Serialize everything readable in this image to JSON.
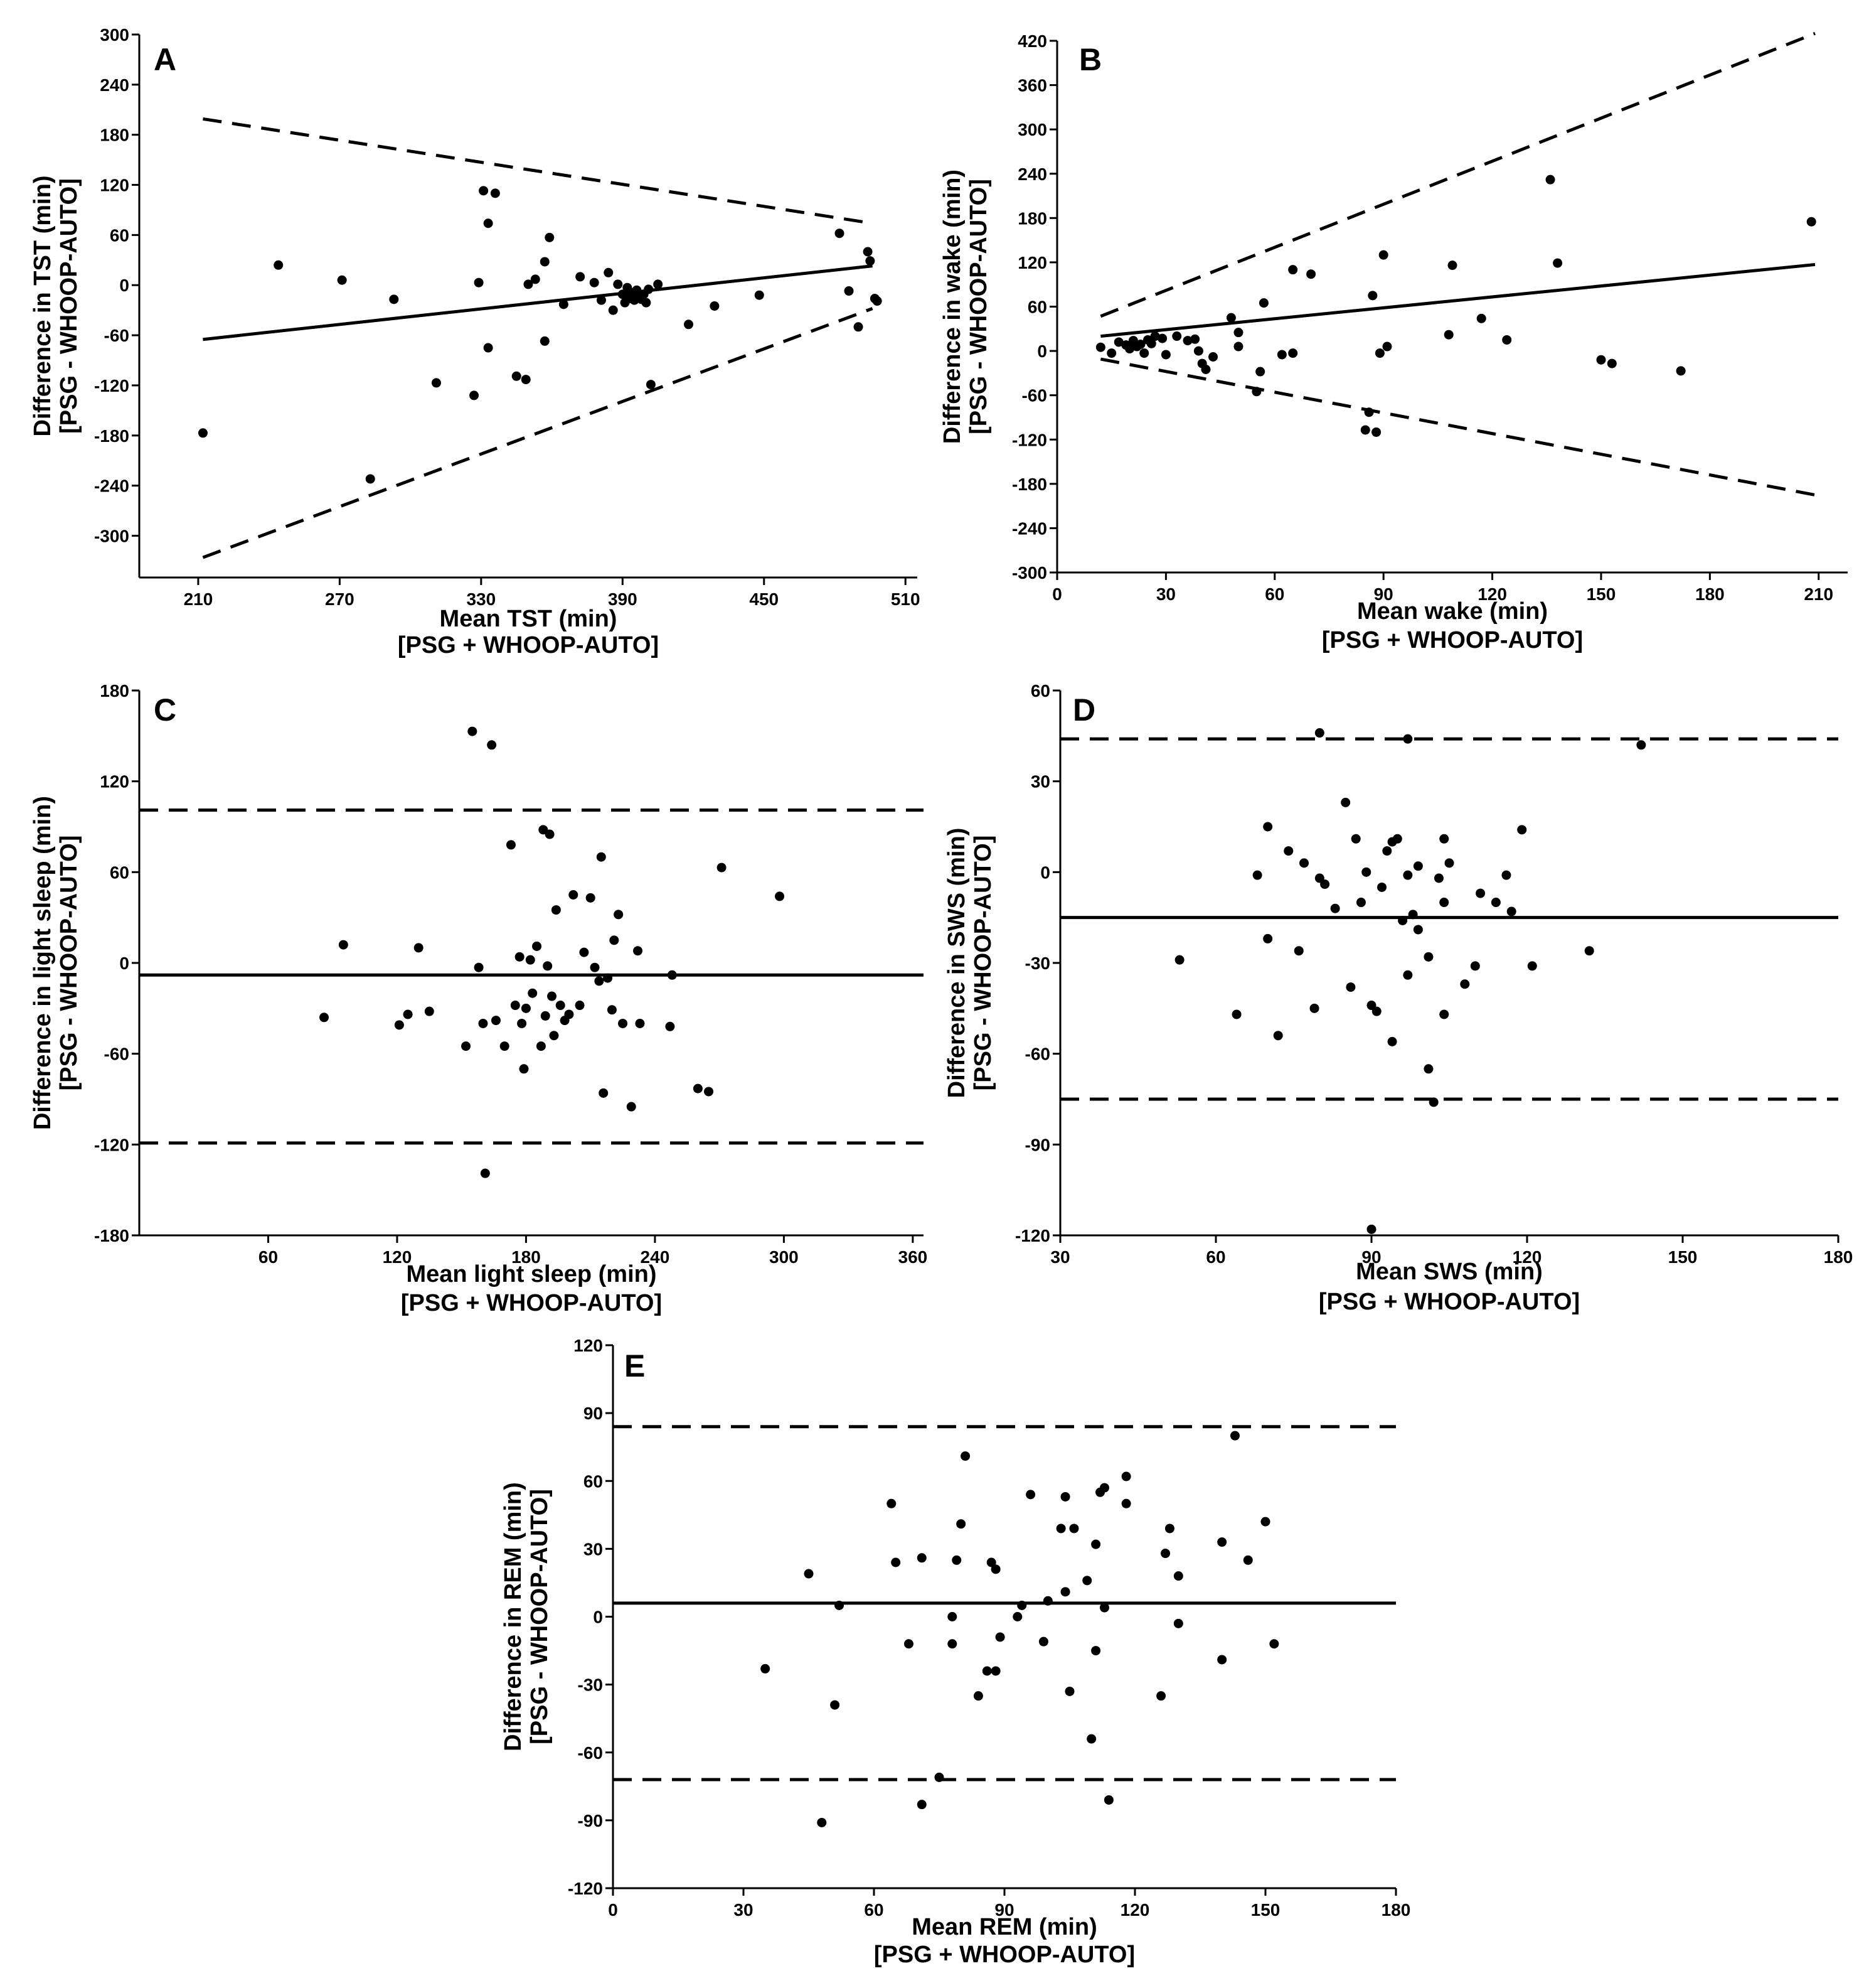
{
  "figure": {
    "x_sub": "[PSG + WHOOP-AUTO]",
    "y_sub": "[PSG - WHOOP-AUTO]"
  },
  "chart_data": [
    {
      "id": "A",
      "type": "scatter",
      "panel_label": "A",
      "xlabel": "Mean TST (min)",
      "ylabel": "Difference in TST (min)",
      "xlim": [
        185,
        515
      ],
      "ylim": [
        -350,
        300
      ],
      "xticks": [
        210,
        270,
        330,
        390,
        450,
        510
      ],
      "yticks": [
        -300,
        -240,
        -180,
        -120,
        -60,
        0,
        60,
        120,
        180,
        240,
        300
      ],
      "bias_line": [
        [
          212,
          -65
        ],
        [
          496,
          23
        ]
      ],
      "loa_upper": [
        [
          212,
          199
        ],
        [
          496,
          74
        ]
      ],
      "loa_lower": [
        [
          212,
          -326
        ],
        [
          496,
          -28
        ]
      ],
      "points": [
        [
          212,
          -177
        ],
        [
          244,
          24
        ],
        [
          271,
          6
        ],
        [
          293,
          -17
        ],
        [
          283,
          -232
        ],
        [
          311,
          -117
        ],
        [
          327,
          -132
        ],
        [
          329,
          3
        ],
        [
          331,
          113
        ],
        [
          333,
          74
        ],
        [
          333,
          -75
        ],
        [
          336,
          110
        ],
        [
          345,
          -109
        ],
        [
          349,
          -113
        ],
        [
          350,
          1
        ],
        [
          353,
          7
        ],
        [
          357,
          28
        ],
        [
          357,
          -67
        ],
        [
          359,
          57
        ],
        [
          365,
          -23
        ],
        [
          372,
          10
        ],
        [
          378,
          3
        ],
        [
          381,
          -18
        ],
        [
          384,
          15
        ],
        [
          386,
          -30
        ],
        [
          388,
          1
        ],
        [
          390,
          -11
        ],
        [
          391,
          -21
        ],
        [
          392,
          -3
        ],
        [
          393,
          -16
        ],
        [
          394,
          -9
        ],
        [
          395,
          -18
        ],
        [
          396,
          -6
        ],
        [
          397,
          -13
        ],
        [
          398,
          -17
        ],
        [
          399,
          -11
        ],
        [
          400,
          -21
        ],
        [
          401,
          -5
        ],
        [
          402,
          -119
        ],
        [
          405,
          1
        ],
        [
          418,
          -47
        ],
        [
          429,
          -25
        ],
        [
          448,
          -12
        ],
        [
          482,
          62
        ],
        [
          486,
          -7
        ],
        [
          490,
          -50
        ],
        [
          494,
          40
        ],
        [
          495,
          29
        ],
        [
          497,
          -16
        ],
        [
          498,
          -19
        ]
      ]
    },
    {
      "id": "B",
      "type": "scatter",
      "panel_label": "B",
      "xlabel": "Mean wake (min)",
      "ylabel": "Difference in wake (min)",
      "xlim": [
        0,
        218
      ],
      "ylim": [
        -300,
        420
      ],
      "xticks": [
        0,
        30,
        60,
        90,
        120,
        150,
        180,
        210
      ],
      "yticks": [
        -300,
        -240,
        -180,
        -120,
        -60,
        0,
        60,
        120,
        180,
        240,
        300,
        360,
        420
      ],
      "bias_line": [
        [
          12,
          20
        ],
        [
          209,
          117
        ]
      ],
      "loa_upper": [
        [
          12,
          47
        ],
        [
          209,
          430
        ]
      ],
      "loa_lower": [
        [
          12,
          -11
        ],
        [
          209,
          -195
        ]
      ],
      "points": [
        [
          12,
          5
        ],
        [
          15,
          -3
        ],
        [
          17,
          12
        ],
        [
          19,
          8
        ],
        [
          20,
          3
        ],
        [
          21,
          14
        ],
        [
          22,
          6
        ],
        [
          23,
          9
        ],
        [
          24,
          -3
        ],
        [
          25,
          15
        ],
        [
          26,
          10
        ],
        [
          27,
          20
        ],
        [
          29,
          17
        ],
        [
          30,
          -5
        ],
        [
          33,
          20
        ],
        [
          36,
          14
        ],
        [
          38,
          16
        ],
        [
          39,
          0
        ],
        [
          40,
          -17
        ],
        [
          41,
          -25
        ],
        [
          43,
          -8
        ],
        [
          48,
          45
        ],
        [
          50,
          25
        ],
        [
          50,
          6
        ],
        [
          55,
          -55
        ],
        [
          56,
          -28
        ],
        [
          57,
          65
        ],
        [
          62,
          -5
        ],
        [
          65,
          110
        ],
        [
          65,
          -3
        ],
        [
          70,
          104
        ],
        [
          85,
          -107
        ],
        [
          86,
          -83
        ],
        [
          87,
          75
        ],
        [
          88,
          -110
        ],
        [
          89,
          -3
        ],
        [
          90,
          130
        ],
        [
          91,
          6
        ],
        [
          108,
          22
        ],
        [
          109,
          116
        ],
        [
          117,
          44
        ],
        [
          124,
          15
        ],
        [
          136,
          232
        ],
        [
          138,
          119
        ],
        [
          150,
          -12
        ],
        [
          153,
          -17
        ],
        [
          172,
          -27
        ],
        [
          208,
          175
        ]
      ]
    },
    {
      "id": "C",
      "type": "scatter",
      "panel_label": "C",
      "xlabel": "Mean light sleep (min)",
      "ylabel": "Difference in light sleep (min)",
      "xlim": [
        0,
        365
      ],
      "ylim": [
        -180,
        180
      ],
      "xticks": [
        60,
        120,
        180,
        240,
        300,
        360
      ],
      "yticks": [
        -180,
        -120,
        -60,
        0,
        60,
        120,
        180
      ],
      "bias_line": [
        [
          0,
          -8
        ],
        [
          365,
          -8
        ]
      ],
      "loa_upper": [
        [
          0,
          101
        ],
        [
          365,
          101
        ]
      ],
      "loa_lower": [
        [
          0,
          -119
        ],
        [
          365,
          -119
        ]
      ],
      "points": [
        [
          86,
          -36
        ],
        [
          95,
          12
        ],
        [
          121,
          -41
        ],
        [
          125,
          -34
        ],
        [
          130,
          10
        ],
        [
          135,
          -32
        ],
        [
          152,
          -55
        ],
        [
          155,
          153
        ],
        [
          158,
          -3
        ],
        [
          160,
          -40
        ],
        [
          161,
          -139
        ],
        [
          164,
          144
        ],
        [
          166,
          -38
        ],
        [
          170,
          -55
        ],
        [
          173,
          78
        ],
        [
          175,
          -28
        ],
        [
          177,
          4
        ],
        [
          178,
          -40
        ],
        [
          179,
          -70
        ],
        [
          180,
          -30
        ],
        [
          182,
          2
        ],
        [
          183,
          -20
        ],
        [
          185,
          11
        ],
        [
          187,
          -55
        ],
        [
          188,
          88
        ],
        [
          189,
          -35
        ],
        [
          190,
          -2
        ],
        [
          191,
          85
        ],
        [
          192,
          -22
        ],
        [
          193,
          -48
        ],
        [
          194,
          35
        ],
        [
          196,
          -28
        ],
        [
          198,
          -38
        ],
        [
          200,
          -34
        ],
        [
          202,
          45
        ],
        [
          205,
          -28
        ],
        [
          207,
          7
        ],
        [
          210,
          43
        ],
        [
          212,
          -3
        ],
        [
          214,
          -12
        ],
        [
          215,
          70
        ],
        [
          216,
          -86
        ],
        [
          218,
          -10
        ],
        [
          220,
          -31
        ],
        [
          221,
          15
        ],
        [
          223,
          32
        ],
        [
          225,
          -40
        ],
        [
          229,
          -95
        ],
        [
          232,
          8
        ],
        [
          233,
          -40
        ],
        [
          247,
          -42
        ],
        [
          248,
          -8
        ],
        [
          260,
          -83
        ],
        [
          265,
          -85
        ],
        [
          271,
          63
        ],
        [
          298,
          44
        ]
      ]
    },
    {
      "id": "D",
      "type": "scatter",
      "panel_label": "D",
      "xlabel": "Mean SWS (min)",
      "ylabel": "Difference in SWS (min)",
      "xlim": [
        30,
        180
      ],
      "ylim": [
        -120,
        60
      ],
      "xticks": [
        30,
        60,
        90,
        120,
        150,
        180
      ],
      "yticks": [
        -120,
        -90,
        -60,
        -30,
        0,
        30,
        60
      ],
      "bias_line": [
        [
          30,
          -15
        ],
        [
          180,
          -15
        ]
      ],
      "loa_upper": [
        [
          30,
          44
        ],
        [
          180,
          44
        ]
      ],
      "loa_lower": [
        [
          30,
          -75
        ],
        [
          180,
          -75
        ]
      ],
      "points": [
        [
          53,
          -29
        ],
        [
          64,
          -47
        ],
        [
          68,
          -1
        ],
        [
          70,
          -22
        ],
        [
          70,
          15
        ],
        [
          72,
          -54
        ],
        [
          74,
          7
        ],
        [
          76,
          -26
        ],
        [
          77,
          3
        ],
        [
          79,
          -45
        ],
        [
          80,
          -2
        ],
        [
          80,
          46
        ],
        [
          81,
          -4
        ],
        [
          83,
          -12
        ],
        [
          85,
          23
        ],
        [
          86,
          -38
        ],
        [
          87,
          11
        ],
        [
          88,
          -10
        ],
        [
          89,
          0
        ],
        [
          90,
          -44
        ],
        [
          90,
          -118
        ],
        [
          91,
          -46
        ],
        [
          92,
          -5
        ],
        [
          93,
          7
        ],
        [
          94,
          10
        ],
        [
          94,
          -56
        ],
        [
          95,
          11
        ],
        [
          96,
          -16
        ],
        [
          97,
          -34
        ],
        [
          97,
          -1
        ],
        [
          97,
          44
        ],
        [
          98,
          -14
        ],
        [
          99,
          -19
        ],
        [
          99,
          2
        ],
        [
          101,
          -28
        ],
        [
          101,
          -65
        ],
        [
          102,
          -76
        ],
        [
          103,
          -2
        ],
        [
          104,
          11
        ],
        [
          104,
          -47
        ],
        [
          104,
          -10
        ],
        [
          105,
          3
        ],
        [
          108,
          -37
        ],
        [
          110,
          -31
        ],
        [
          111,
          -7
        ],
        [
          114,
          -10
        ],
        [
          116,
          -1
        ],
        [
          117,
          -13
        ],
        [
          119,
          14
        ],
        [
          121,
          -31
        ],
        [
          132,
          -26
        ],
        [
          142,
          42
        ]
      ]
    },
    {
      "id": "E",
      "type": "scatter",
      "panel_label": "E",
      "xlabel": "Mean REM (min)",
      "ylabel": "Difference in REM (min)",
      "xlim": [
        0,
        180
      ],
      "ylim": [
        -120,
        120
      ],
      "xticks": [
        0,
        30,
        60,
        90,
        120,
        150,
        180
      ],
      "yticks": [
        -120,
        -90,
        -60,
        -30,
        0,
        30,
        60,
        90,
        120
      ],
      "bias_line": [
        [
          0,
          6
        ],
        [
          180,
          6
        ]
      ],
      "loa_upper": [
        [
          0,
          84
        ],
        [
          180,
          84
        ]
      ],
      "loa_lower": [
        [
          0,
          -72
        ],
        [
          180,
          -72
        ]
      ],
      "points": [
        [
          35,
          -23
        ],
        [
          45,
          19
        ],
        [
          48,
          -91
        ],
        [
          51,
          -39
        ],
        [
          52,
          5
        ],
        [
          64,
          50
        ],
        [
          65,
          24
        ],
        [
          68,
          -12
        ],
        [
          71,
          26
        ],
        [
          71,
          -83
        ],
        [
          75,
          -71
        ],
        [
          78,
          0
        ],
        [
          78,
          -12
        ],
        [
          79,
          25
        ],
        [
          80,
          41
        ],
        [
          81,
          71
        ],
        [
          84,
          -35
        ],
        [
          86,
          -24
        ],
        [
          87,
          24
        ],
        [
          88,
          21
        ],
        [
          88,
          -24
        ],
        [
          89,
          -9
        ],
        [
          93,
          0
        ],
        [
          94,
          5
        ],
        [
          96,
          54
        ],
        [
          99,
          -11
        ],
        [
          100,
          7
        ],
        [
          103,
          39
        ],
        [
          104,
          11
        ],
        [
          104,
          53
        ],
        [
          105,
          -33
        ],
        [
          106,
          39
        ],
        [
          109,
          16
        ],
        [
          110,
          -54
        ],
        [
          111,
          32
        ],
        [
          111,
          -15
        ],
        [
          112,
          55
        ],
        [
          113,
          57
        ],
        [
          113,
          4
        ],
        [
          114,
          -81
        ],
        [
          118,
          62
        ],
        [
          118,
          50
        ],
        [
          126,
          -35
        ],
        [
          127,
          28
        ],
        [
          128,
          39
        ],
        [
          130,
          18
        ],
        [
          130,
          -3
        ],
        [
          140,
          -19
        ],
        [
          140,
          33
        ],
        [
          143,
          80
        ],
        [
          146,
          25
        ],
        [
          150,
          42
        ],
        [
          152,
          -12
        ]
      ]
    }
  ]
}
